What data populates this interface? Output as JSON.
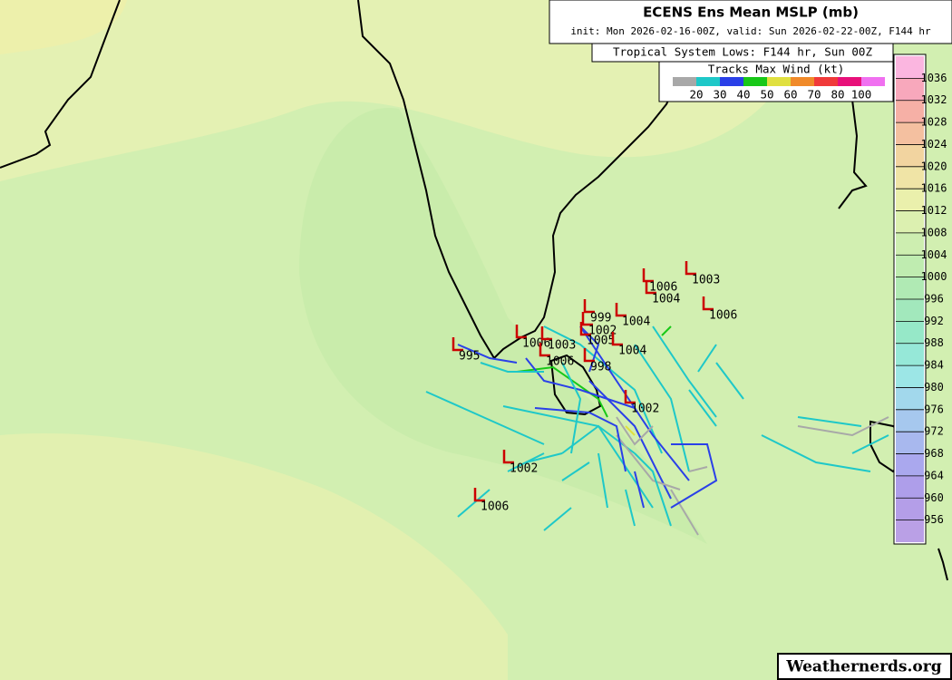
{
  "header": {
    "title": "ECENS Ens Mean MSLP (mb)",
    "subtitle": "init: Mon 2026-02-16-00Z, valid: Sun 2026-02-22-00Z, F144 hr"
  },
  "lows_box": {
    "title": "Tropical System Lows: F144 hr, Sun 00Z"
  },
  "wind_legend": {
    "title": "Tracks Max Wind (kt)",
    "labels": [
      "20",
      "30",
      "40",
      "50",
      "60",
      "70",
      "80",
      "100"
    ]
  },
  "colorbar": {
    "labels": [
      "1036",
      "1032",
      "1028",
      "1024",
      "1020",
      "1016",
      "1012",
      "1008",
      "1004",
      "1000",
      "996",
      "992",
      "988",
      "984",
      "980",
      "976",
      "972",
      "968",
      "964",
      "960",
      "956"
    ]
  },
  "lows": [
    "1006",
    "1003",
    "1004",
    "1006",
    "999",
    "1002",
    "1004",
    "1005",
    "1004",
    "1006",
    "1003",
    "1006",
    "995",
    "998",
    "1002",
    "1002",
    "1006"
  ],
  "footer": {
    "credit": "Weathernerds.org"
  }
}
